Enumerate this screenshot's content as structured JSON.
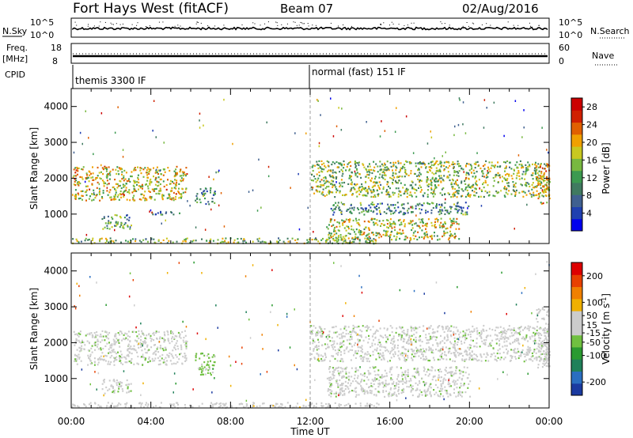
{
  "header": {
    "station": "Fort Hays West (fitACF)",
    "beam": "Beam 07",
    "date": "02/Aug/2016"
  },
  "top_panels": {
    "noise_label": "N.Sky",
    "noise_right_label": "N.Search",
    "noise_left_ticks": [
      "10^5",
      "10^0"
    ],
    "noise_right_ticks": [
      "10^5",
      "10^0"
    ],
    "freq_label": "Freq.",
    "freq_unit": "[MHz]",
    "freq_ticks": [
      "18",
      "8"
    ],
    "nave_label": "Nave",
    "nave_ticks": [
      "60",
      "0"
    ],
    "cpid_label": "CPID",
    "cpid_segments": [
      {
        "start_hour": 0,
        "label": "themis 3300 IF"
      },
      {
        "start_hour": 12,
        "label": "normal (fast) 151 IF"
      }
    ]
  },
  "chart_data": [
    {
      "type": "heatmap",
      "title": "Power",
      "ylabel": "Slant Range [km]",
      "xlabel": "",
      "ylim": [
        180,
        4500
      ],
      "xlim_hours": [
        0,
        24
      ],
      "y_ticks": [
        "1000",
        "2000",
        "3000",
        "4000"
      ],
      "x_ticks": [
        "00:00",
        "04:00",
        "08:00",
        "12:00",
        "16:00",
        "20:00",
        "00:00"
      ],
      "colorbar": {
        "label": "Power [dB]",
        "ticks": [
          "28",
          "24",
          "20",
          "16",
          "12",
          "8",
          "4"
        ],
        "tick_values": [
          28,
          24,
          20,
          16,
          12,
          8,
          4
        ],
        "range": [
          0,
          30
        ],
        "colors": [
          "#0000ee",
          "#2040b0",
          "#406090",
          "#407a60",
          "#3c9a50",
          "#78b840",
          "#c8c820",
          "#f0a000",
          "#e06000",
          "#d02000",
          "#cc0000"
        ]
      },
      "echo_regions": [
        {
          "t0": 0.1,
          "t1": 5.8,
          "r0": 1400,
          "r1": 2350,
          "level": 18
        },
        {
          "t0": 1.5,
          "t1": 3.0,
          "r0": 600,
          "r1": 1000,
          "level": 12
        },
        {
          "t0": 4.0,
          "t1": 5.8,
          "r0": 1000,
          "r1": 1100,
          "level": 9
        },
        {
          "t0": 6.2,
          "t1": 7.2,
          "r0": 1300,
          "r1": 1750,
          "level": 10
        },
        {
          "t0": 0.0,
          "t1": 15.5,
          "r0": 200,
          "r1": 350,
          "level": 14
        },
        {
          "t0": 12.0,
          "t1": 24.0,
          "r0": 1500,
          "r1": 2500,
          "level": 15
        },
        {
          "t0": 12.8,
          "t1": 19.5,
          "r0": 300,
          "r1": 900,
          "level": 17
        },
        {
          "t0": 13.0,
          "t1": 20.0,
          "r0": 1000,
          "r1": 1350,
          "level": 10
        },
        {
          "t0": 23.3,
          "t1": 24.0,
          "r0": 1300,
          "r1": 2400,
          "level": 20
        }
      ]
    },
    {
      "type": "heatmap",
      "title": "Velocity",
      "ylabel": "Slant Range [km]",
      "xlabel": "Time UT",
      "ylim": [
        180,
        4500
      ],
      "xlim_hours": [
        0,
        24
      ],
      "y_ticks": [
        "1000",
        "2000",
        "3000",
        "4000"
      ],
      "x_ticks": [
        "00:00",
        "04:00",
        "08:00",
        "12:00",
        "16:00",
        "20:00",
        "00:00"
      ],
      "colorbar": {
        "label": "Velocity [m s^-1]",
        "ticks": [
          "200",
          "100",
          "50",
          "15",
          "-15",
          "-50",
          "-100",
          "-200"
        ],
        "tick_values": [
          200,
          100,
          50,
          15,
          -15,
          -50,
          -100,
          -200
        ],
        "range": [
          -250,
          250
        ],
        "colors": [
          "#1a3aa0",
          "#2a6ec0",
          "#20805a",
          "#2a9a30",
          "#70c040",
          "#cccccc",
          "#cccccc",
          "#f0b000",
          "#f08000",
          "#e84000",
          "#dd0000"
        ]
      },
      "echo_regions": [
        {
          "t0": 0.1,
          "t1": 5.8,
          "r0": 1400,
          "r1": 2350,
          "level": 0
        },
        {
          "t0": 1.5,
          "t1": 3.0,
          "r0": 600,
          "r1": 1000,
          "level": 0
        },
        {
          "t0": 6.2,
          "t1": 7.2,
          "r0": 1100,
          "r1": 1750,
          "level": -40
        },
        {
          "t0": 0.0,
          "t1": 15.5,
          "r0": 200,
          "r1": 350,
          "level": 40
        },
        {
          "t0": 12.0,
          "t1": 24.0,
          "r0": 1500,
          "r1": 2500,
          "level": 0
        },
        {
          "t0": 12.8,
          "t1": 20.0,
          "r0": 500,
          "r1": 1350,
          "level": 0
        },
        {
          "t0": 23.3,
          "t1": 24.0,
          "r0": 1300,
          "r1": 3000,
          "level": 30
        }
      ]
    }
  ]
}
